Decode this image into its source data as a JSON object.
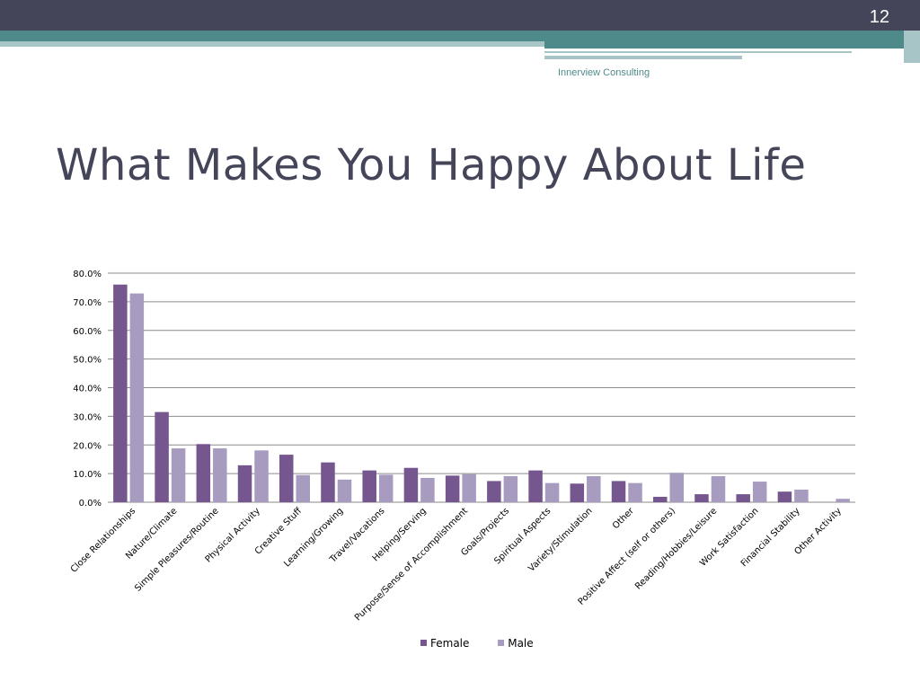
{
  "slide": {
    "number": "12",
    "company": "Innerview Consulting",
    "title": "What Makes You Happy About Life"
  },
  "colors": {
    "header_dark": "#444559",
    "teal": "#4f8a8b",
    "teal_light": "#a7c4c7",
    "female": "#76568f",
    "male": "#a79bbf"
  },
  "chart_data": {
    "type": "bar",
    "title": "",
    "categories": [
      "Close Relationships",
      "Nature/Climate",
      "Simple Pleasures/Routine",
      "Physical Activity",
      "Creative Stuff",
      "Learning/Growing",
      "Travel/Vacations",
      "Helping/Serving",
      "Purpose/Sense of Accomplishment",
      "Goals/Projects",
      "Spiritual Aspects",
      "Variety/Stimulation",
      "Other",
      "Positive Affect (self or others)",
      "Reading/Hobbies/Leisure",
      "Work Satisfaction",
      "Financial Stability",
      "Other Activity"
    ],
    "series": [
      {
        "name": "Female",
        "color": "#76568f",
        "values": [
          76.0,
          31.5,
          20.3,
          12.9,
          16.6,
          13.9,
          11.1,
          12.0,
          9.3,
          7.4,
          11.1,
          6.5,
          7.4,
          1.9,
          2.8,
          2.8,
          3.7,
          0.0
        ]
      },
      {
        "name": "Male",
        "color": "#a79bbf",
        "values": [
          72.9,
          18.8,
          18.8,
          18.1,
          9.5,
          7.9,
          9.6,
          8.5,
          9.8,
          9.1,
          6.7,
          9.1,
          6.7,
          10.3,
          9.1,
          7.2,
          4.4,
          1.2
        ]
      }
    ],
    "yticks": [
      "0.0%",
      "10.0%",
      "20.0%",
      "30.0%",
      "40.0%",
      "50.0%",
      "60.0%",
      "70.0%",
      "80.0%"
    ],
    "ylim": [
      0,
      80
    ],
    "grid": true,
    "legend": "bottom"
  }
}
